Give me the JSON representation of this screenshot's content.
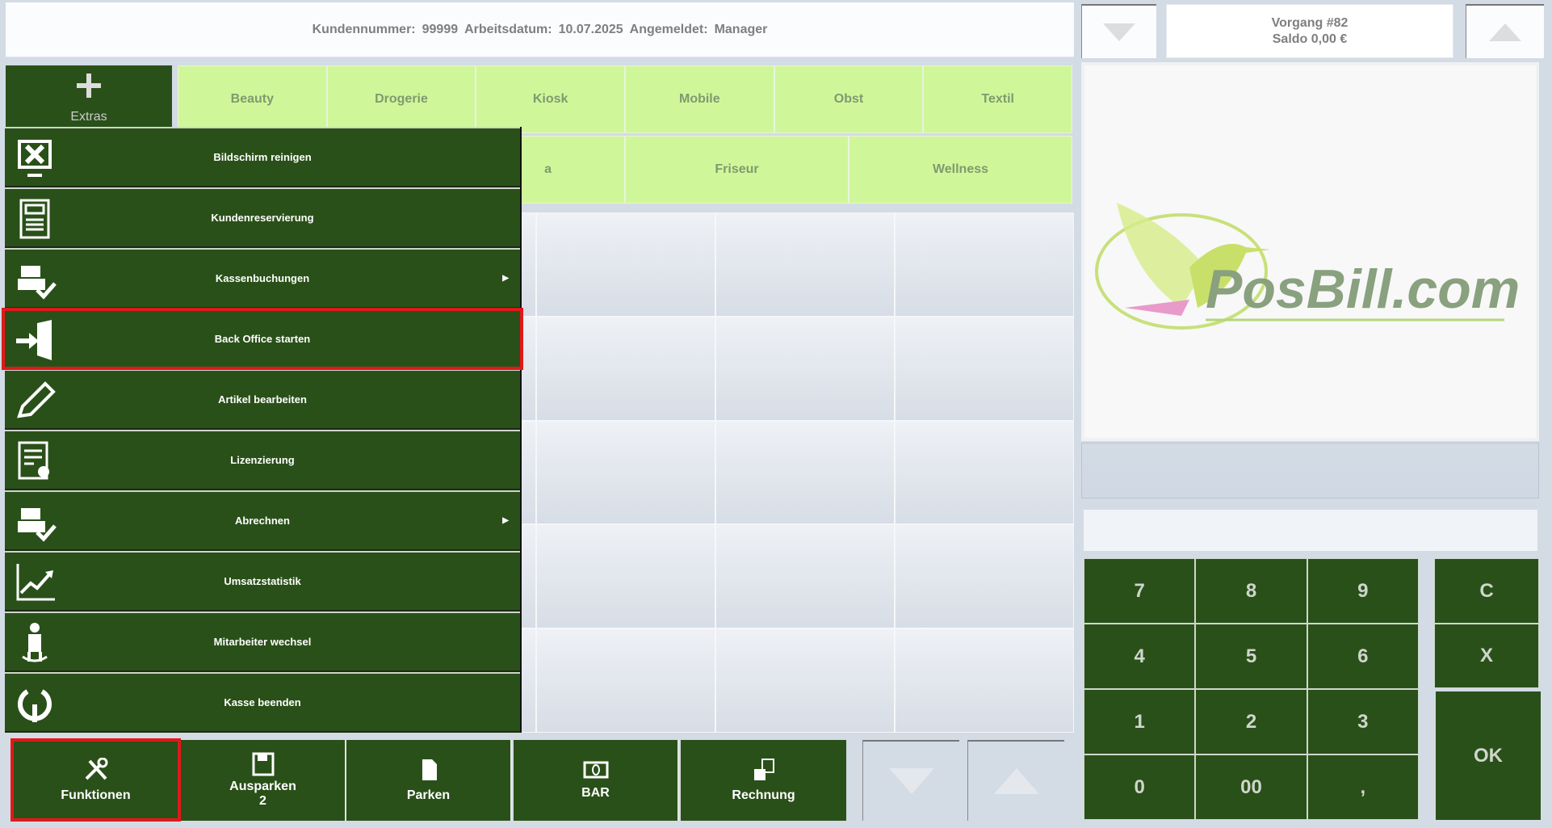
{
  "header": {
    "customer_label": "Kundennummer:",
    "customer_value": "99999",
    "date_label": "Arbeitsdatum:",
    "date_value": "10.07.2025",
    "user_label": "Angemeldet:",
    "user_value": "Manager"
  },
  "transaction": {
    "title": "Vorgang #82",
    "balance": "Saldo 0,00 €"
  },
  "logo": {
    "text": "PosBill.com"
  },
  "extras": {
    "label": "Extras"
  },
  "categories_row1": [
    "Beauty",
    "Drogerie",
    "Kiosk",
    "Mobile",
    "Obst",
    "Textil"
  ],
  "categories_row2": [
    "",
    "a",
    "Friseur",
    "Wellness"
  ],
  "menu": [
    {
      "label": "Bildschirm reinigen",
      "icon": "clean-screen-icon"
    },
    {
      "label": "Kundenreservierung",
      "icon": "reservation-icon"
    },
    {
      "label": "Kassenbuchungen",
      "icon": "cash-register-icon",
      "submenu": true
    },
    {
      "label": "Back Office starten",
      "icon": "enter-door-icon",
      "highlighted": true
    },
    {
      "label": "Artikel bearbeiten",
      "icon": "pencil-icon"
    },
    {
      "label": "Lizenzierung",
      "icon": "certificate-icon"
    },
    {
      "label": "Abrechnen",
      "icon": "cash-register-icon",
      "submenu": true
    },
    {
      "label": "Umsatzstatistik",
      "icon": "chart-icon"
    },
    {
      "label": "Mitarbeiter wechsel",
      "icon": "user-switch-icon"
    },
    {
      "label": "Kasse beenden",
      "icon": "power-icon"
    }
  ],
  "bottom": {
    "funktionen": "Funktionen",
    "ausparken": "Ausparken",
    "ausparken_count": "2",
    "parken": "Parken",
    "bar": "BAR",
    "rechnung": "Rechnung"
  },
  "numpad": {
    "keys": [
      "7",
      "8",
      "9",
      "4",
      "5",
      "6",
      "1",
      "2",
      "3",
      "0",
      "00",
      ","
    ],
    "clear": "C",
    "cancel": "X",
    "ok": "OK",
    "display_value": ""
  },
  "colors": {
    "green": "#2a5019",
    "category": "#cff79a",
    "highlight": "#e0191a"
  }
}
